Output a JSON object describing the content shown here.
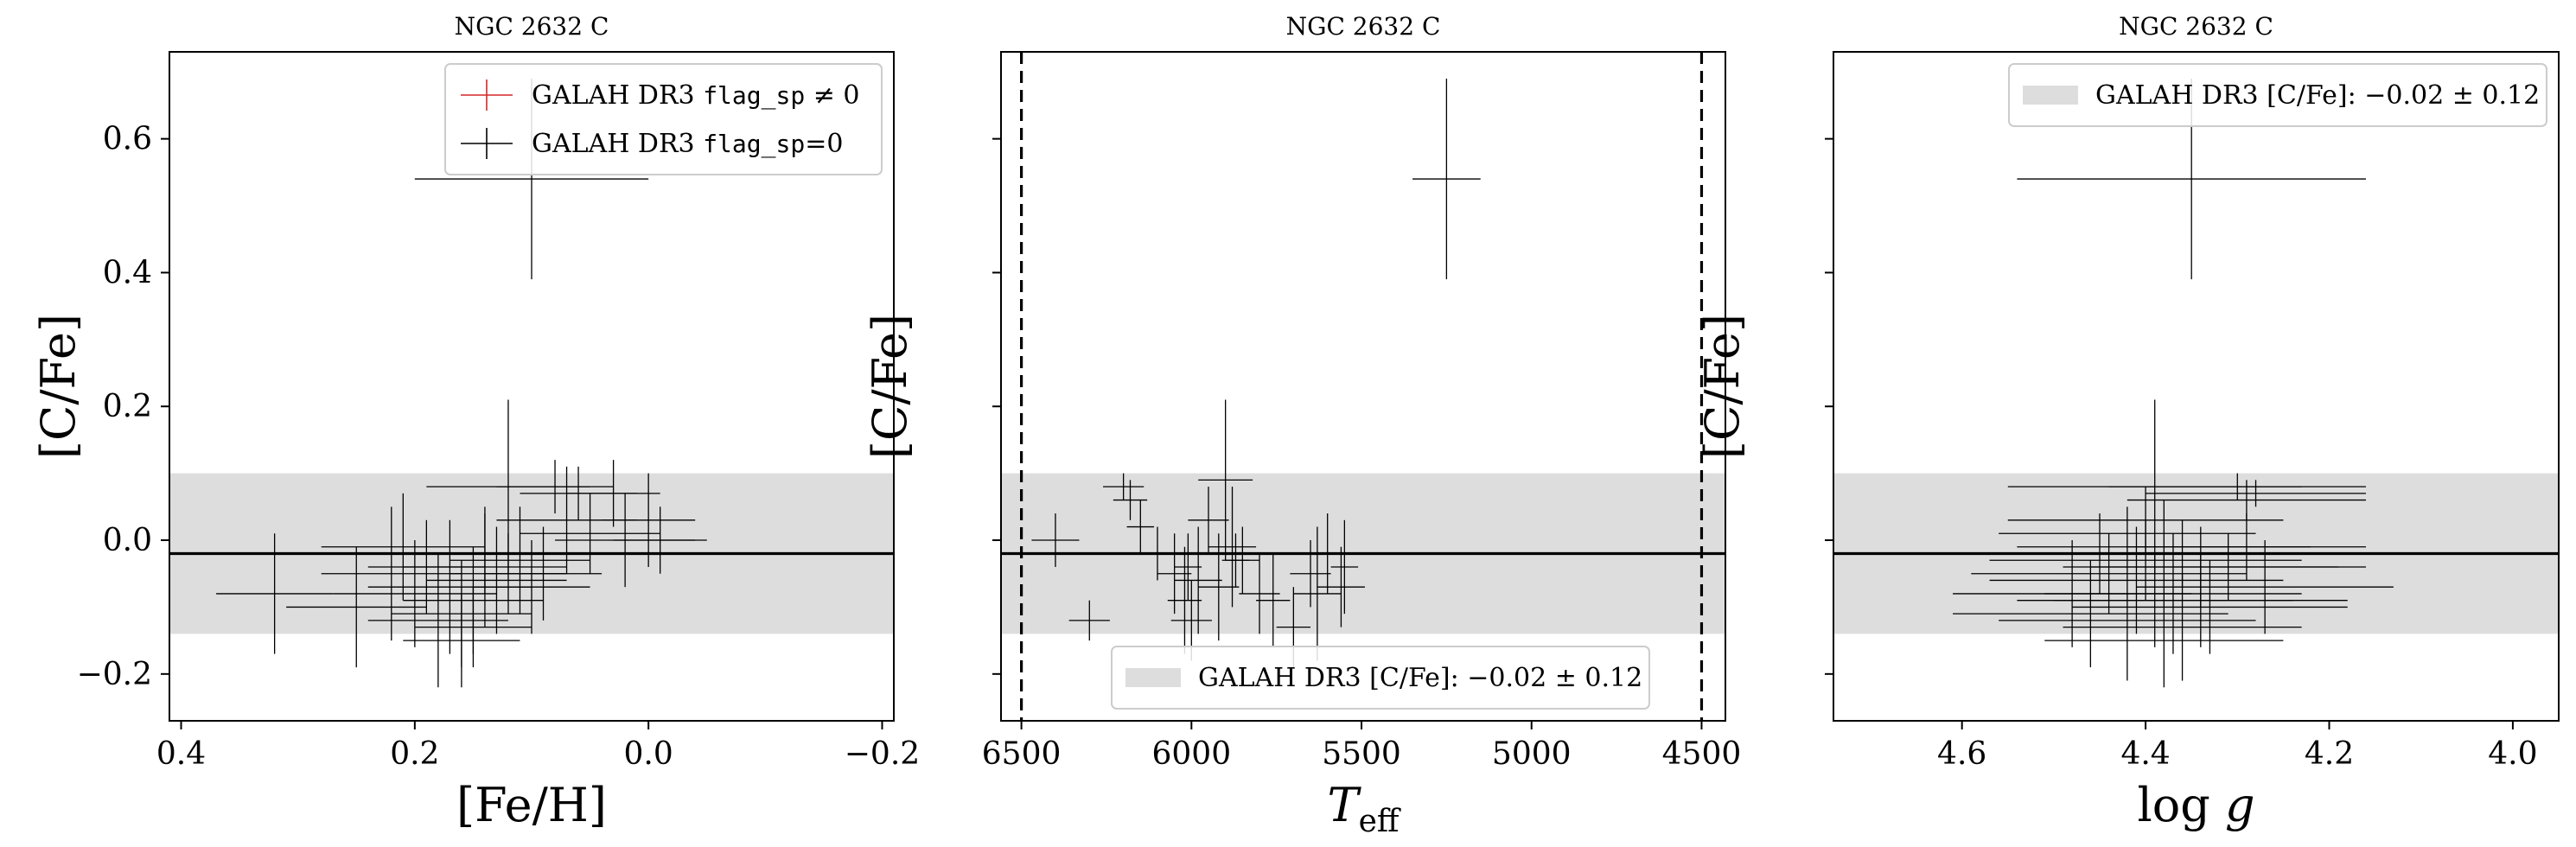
{
  "chart_data": [
    {
      "type": "scatter",
      "title": "NGC 2632 C",
      "xlabel": "[Fe/H]",
      "ylabel": "[C/Fe]",
      "xlim": [
        0.41,
        -0.21
      ],
      "ylim": [
        -0.27,
        0.73
      ],
      "xticks": [
        0.4,
        0.2,
        0.0,
        -0.2
      ],
      "xtick_labels": [
        "0.4",
        "0.2",
        "0.0",
        "−0.2"
      ],
      "yticks": [
        -0.2,
        0.0,
        0.2,
        0.4,
        0.6
      ],
      "ytick_labels": [
        "−0.2",
        "0.0",
        "0.2",
        "0.4",
        "0.6"
      ],
      "band": {
        "center": -0.02,
        "halfwidth": 0.12
      },
      "hline": -0.02,
      "vlines": [],
      "legend": {
        "position": "top-right",
        "entries": [
          {
            "pre": "GALAH DR3 ",
            "mono": "flag_sp",
            "post": " ≠ 0",
            "color": "#d62728"
          },
          {
            "pre": "GALAH DR3 ",
            "mono": "flag_sp",
            "post": "=0",
            "color": "#000000"
          }
        ]
      },
      "series": [
        {
          "flag_sp": 0,
          "color": "#000000",
          "points": [
            [
              0.1,
              0.54,
              0.1,
              0.15
            ],
            [
              0.32,
              -0.08,
              0.05,
              0.09
            ],
            [
              0.2,
              -0.08,
              0.07,
              0.08
            ],
            [
              0.22,
              -0.05,
              0.06,
              0.1
            ],
            [
              0.25,
              -0.1,
              0.06,
              0.09
            ],
            [
              0.18,
              -0.12,
              0.06,
              0.1
            ],
            [
              0.17,
              -0.07,
              0.07,
              0.1
            ],
            [
              0.16,
              -0.15,
              0.05,
              0.07
            ],
            [
              0.15,
              -0.09,
              0.06,
              0.08
            ],
            [
              0.14,
              -0.04,
              0.07,
              0.09
            ],
            [
              0.13,
              -0.06,
              0.06,
              0.08
            ],
            [
              0.12,
              0.08,
              0.07,
              0.13
            ],
            [
              0.11,
              -0.03,
              0.06,
              0.08
            ],
            [
              0.09,
              -0.05,
              0.05,
              0.07
            ],
            [
              0.08,
              0.08,
              0.05,
              0.04
            ],
            [
              0.07,
              0.03,
              0.06,
              0.08
            ],
            [
              0.06,
              0.07,
              0.05,
              0.04
            ],
            [
              0.05,
              0.01,
              0.06,
              0.06
            ],
            [
              0.03,
              0.07,
              0.04,
              0.05
            ],
            [
              0.02,
              0.0,
              0.06,
              0.07
            ],
            [
              0.0,
              0.03,
              0.04,
              0.07
            ],
            [
              -0.01,
              0.0,
              0.04,
              0.05
            ],
            [
              0.21,
              -0.01,
              0.07,
              0.08
            ],
            [
              0.19,
              -0.04,
              0.05,
              0.07
            ],
            [
              0.16,
              -0.11,
              0.06,
              0.08
            ],
            [
              0.15,
              -0.13,
              0.05,
              0.06
            ],
            [
              0.14,
              -0.02,
              0.04,
              0.06
            ],
            [
              0.12,
              -0.05,
              0.05,
              0.06
            ],
            [
              0.1,
              -0.07,
              0.05,
              0.07
            ]
          ]
        }
      ]
    },
    {
      "type": "scatter",
      "title": "NGC 2632 C",
      "xlabel": "T_eff",
      "ylabel": "[C/Fe]",
      "xlim": [
        6560,
        4430
      ],
      "ylim": [
        -0.27,
        0.73
      ],
      "xticks": [
        6500,
        6000,
        5500,
        5000,
        4500
      ],
      "xtick_labels": [
        "6500",
        "6000",
        "5500",
        "5000",
        "4500"
      ],
      "yticks": [
        -0.2,
        0.0,
        0.2,
        0.4,
        0.6
      ],
      "ytick_labels": [
        "",
        "",
        "",
        "",
        ""
      ],
      "band": {
        "center": -0.02,
        "halfwidth": 0.12
      },
      "hline": -0.02,
      "vlines": [
        6500,
        4500
      ],
      "legend": {
        "position": "bottom-center",
        "entries": [
          {
            "pre": "GALAH DR3 [C/Fe]:  ",
            "mono": "",
            "post": "−0.02 ± 0.12",
            "color": "#dddddd",
            "patch": true
          }
        ]
      },
      "series": [
        {
          "flag_sp": 0,
          "color": "#000000",
          "points": [
            [
              5250,
              0.54,
              100,
              0.15
            ],
            [
              6400,
              0.0,
              70,
              0.04
            ],
            [
              6300,
              -0.12,
              60,
              0.03
            ],
            [
              6200,
              0.08,
              60,
              0.02
            ],
            [
              6180,
              0.06,
              50,
              0.03
            ],
            [
              6150,
              0.02,
              40,
              0.04
            ],
            [
              6100,
              -0.02,
              40,
              0.04
            ],
            [
              6050,
              -0.05,
              50,
              0.06
            ],
            [
              6020,
              -0.09,
              50,
              0.08
            ],
            [
              6000,
              -0.12,
              60,
              0.06
            ],
            [
              5980,
              -0.06,
              70,
              0.08
            ],
            [
              5950,
              0.03,
              60,
              0.05
            ],
            [
              5920,
              -0.07,
              60,
              0.08
            ],
            [
              5900,
              0.09,
              80,
              0.12
            ],
            [
              5880,
              -0.01,
              70,
              0.09
            ],
            [
              5850,
              -0.03,
              50,
              0.05
            ],
            [
              5800,
              -0.08,
              60,
              0.06
            ],
            [
              5760,
              -0.09,
              50,
              0.07
            ],
            [
              5700,
              -0.13,
              50,
              0.06
            ],
            [
              5650,
              -0.05,
              60,
              0.05
            ],
            [
              5630,
              -0.08,
              70,
              0.1
            ],
            [
              5600,
              -0.02,
              60,
              0.06
            ],
            [
              5560,
              -0.07,
              70,
              0.06
            ],
            [
              5550,
              -0.04,
              40,
              0.07
            ],
            [
              6010,
              -0.04,
              40,
              0.05
            ],
            [
              5870,
              -0.03,
              40,
              0.04
            ]
          ]
        }
      ]
    },
    {
      "type": "scatter",
      "title": "NGC 2632 C",
      "xlabel": "log g",
      "ylabel": "[C/Fe]",
      "xlim": [
        4.74,
        3.95
      ],
      "ylim": [
        -0.27,
        0.73
      ],
      "xticks": [
        4.6,
        4.4,
        4.2,
        4.0
      ],
      "xtick_labels": [
        "4.6",
        "4.4",
        "4.2",
        "4.0"
      ],
      "yticks": [
        -0.2,
        0.0,
        0.2,
        0.4,
        0.6
      ],
      "ytick_labels": [
        "",
        "",
        "",
        "",
        ""
      ],
      "band": {
        "center": -0.02,
        "halfwidth": 0.12
      },
      "hline": -0.02,
      "vlines": [],
      "legend": {
        "position": "top-right",
        "entries": [
          {
            "pre": "GALAH DR3 [C/Fe]:  ",
            "mono": "",
            "post": "−0.02 ± 0.12",
            "color": "#dddddd",
            "patch": true
          }
        ]
      },
      "series": [
        {
          "flag_sp": 0,
          "color": "#000000",
          "points": [
            [
              4.35,
              0.54,
              0.19,
              0.15
            ],
            [
              4.39,
              0.08,
              0.16,
              0.13
            ],
            [
              4.3,
              0.08,
              0.14,
              0.02
            ],
            [
              4.29,
              0.06,
              0.13,
              0.03
            ],
            [
              4.28,
              0.07,
              0.12,
              0.02
            ],
            [
              4.4,
              0.03,
              0.15,
              0.05
            ],
            [
              4.42,
              0.01,
              0.14,
              0.04
            ],
            [
              4.38,
              -0.01,
              0.16,
              0.07
            ],
            [
              4.36,
              -0.02,
              0.14,
              0.05
            ],
            [
              4.34,
              -0.04,
              0.15,
              0.06
            ],
            [
              4.44,
              -0.05,
              0.15,
              0.06
            ],
            [
              4.41,
              -0.06,
              0.16,
              0.08
            ],
            [
              4.37,
              -0.08,
              0.14,
              0.09
            ],
            [
              4.39,
              -0.09,
              0.15,
              0.07
            ],
            [
              4.33,
              -0.1,
              0.15,
              0.07
            ],
            [
              4.36,
              -0.13,
              0.13,
              0.08
            ],
            [
              4.42,
              -0.12,
              0.14,
              0.09
            ],
            [
              4.46,
              -0.11,
              0.15,
              0.08
            ],
            [
              4.38,
              -0.15,
              0.13,
              0.07
            ],
            [
              4.4,
              -0.03,
              0.17,
              0.06
            ],
            [
              4.31,
              -0.04,
              0.15,
              0.05
            ],
            [
              4.27,
              -0.07,
              0.14,
              0.07
            ],
            [
              4.45,
              -0.02,
              0.13,
              0.06
            ],
            [
              4.48,
              -0.08,
              0.13,
              0.08
            ],
            [
              4.34,
              -0.09,
              0.16,
              0.07
            ],
            [
              4.29,
              -0.01,
              0.13,
              0.05
            ]
          ]
        }
      ]
    }
  ]
}
